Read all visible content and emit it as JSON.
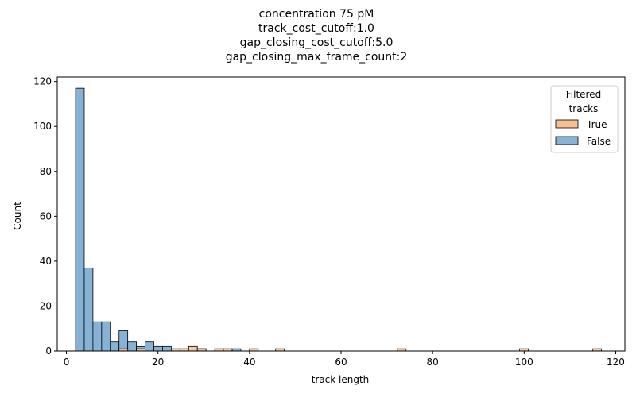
{
  "chart_data": {
    "type": "histogram",
    "title_lines": [
      "concentration 75 pM",
      "track_cost_cutoff:1.0",
      "gap_closing_cost_cutoff:5.0",
      "gap_closing_max_frame_count:2"
    ],
    "xlabel": "track length",
    "ylabel": "Count",
    "xlim": [
      -2,
      122
    ],
    "ylim": [
      0,
      122
    ],
    "xticks": [
      0,
      20,
      40,
      60,
      80,
      100,
      120
    ],
    "yticks": [
      0,
      20,
      40,
      60,
      80,
      100,
      120
    ],
    "bin_width": 1.9,
    "legend": {
      "title_lines": [
        "Filtered",
        "tracks"
      ],
      "placement": "top-right",
      "entries": [
        "True",
        "False"
      ]
    },
    "colors": {
      "true_fill": "#f9c08f",
      "false_fill": "#86b2d6",
      "edge": "#000000"
    },
    "series": [
      {
        "name": "False",
        "bins": [
          {
            "start": 2.0,
            "count": 117
          },
          {
            "start": 3.9,
            "count": 37
          },
          {
            "start": 5.8,
            "count": 13
          },
          {
            "start": 7.7,
            "count": 13
          },
          {
            "start": 9.6,
            "count": 4
          },
          {
            "start": 11.5,
            "count": 9
          },
          {
            "start": 13.4,
            "count": 4
          },
          {
            "start": 15.3,
            "count": 2
          },
          {
            "start": 17.2,
            "count": 4
          },
          {
            "start": 19.1,
            "count": 2
          },
          {
            "start": 21.0,
            "count": 2
          },
          {
            "start": 28.6,
            "count": 1
          },
          {
            "start": 36.2,
            "count": 1
          }
        ]
      },
      {
        "name": "True",
        "bins": [
          {
            "start": 11.5,
            "count": 1
          },
          {
            "start": 15.3,
            "count": 1
          },
          {
            "start": 22.9,
            "count": 1
          },
          {
            "start": 24.8,
            "count": 1
          },
          {
            "start": 26.7,
            "count": 2
          },
          {
            "start": 28.6,
            "count": 1
          },
          {
            "start": 32.4,
            "count": 1
          },
          {
            "start": 34.3,
            "count": 1
          },
          {
            "start": 40.0,
            "count": 1
          },
          {
            "start": 45.7,
            "count": 1
          },
          {
            "start": 72.3,
            "count": 1
          },
          {
            "start": 99.0,
            "count": 1
          },
          {
            "start": 115.0,
            "count": 1
          }
        ]
      }
    ]
  }
}
